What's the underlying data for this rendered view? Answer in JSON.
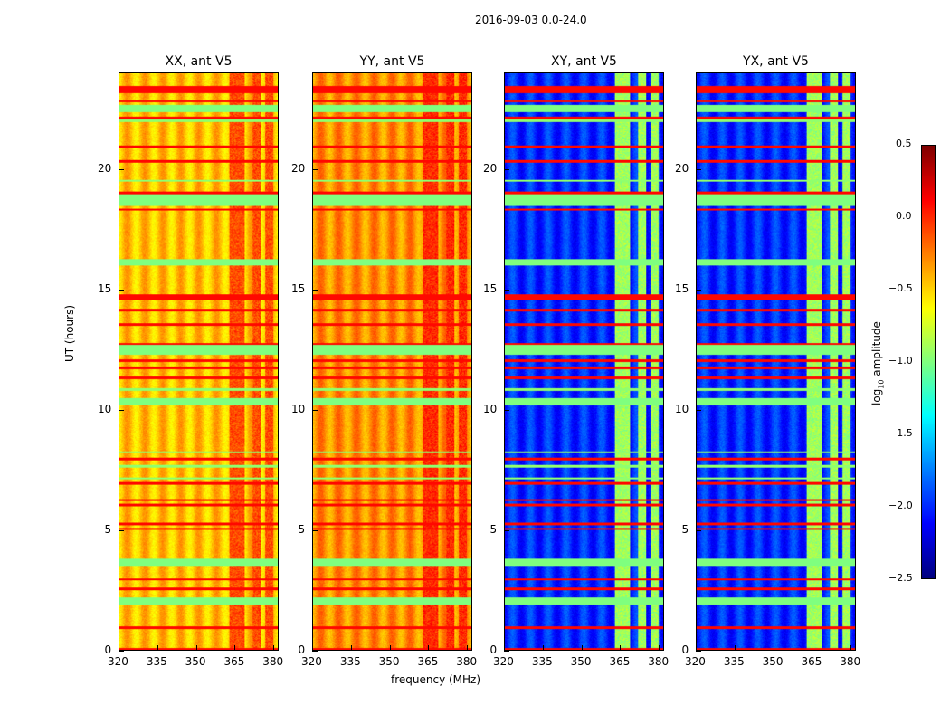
{
  "chart_data": {
    "type": "heatmap",
    "suptitle": "2016-09-03 0.0-24.0",
    "xlabel": "frequency (MHz)",
    "ylabel": "UT (hours)",
    "xlim": [
      320,
      382
    ],
    "ylim": [
      0,
      24
    ],
    "xticks": [
      "320",
      "335",
      "350",
      "365",
      "380"
    ],
    "yticks": [
      "0",
      "5",
      "10",
      "15",
      "20"
    ],
    "colormap": "jet",
    "rfi_channels_mhz": [
      [
        363,
        366
      ],
      [
        366,
        369
      ],
      [
        372,
        375
      ],
      [
        377,
        380
      ]
    ],
    "flagged_bands_hours": [
      [
        3.5,
        3.7
      ],
      [
        10.2,
        10.4
      ],
      [
        12.3,
        12.6
      ],
      [
        18.5,
        18.9
      ],
      [
        22.4,
        22.6
      ],
      [
        1.9,
        2.1
      ],
      [
        16.0,
        16.2
      ]
    ],
    "panels": [
      {
        "title": "XX, ant V5",
        "base_log_amp": -0.45,
        "rfi_log_amp": -0.1
      },
      {
        "title": "YY, ant V5",
        "base_log_amp": -0.3,
        "rfi_log_amp": 0.0
      },
      {
        "title": "XY, ant V5",
        "base_log_amp": -2.0,
        "rfi_log_amp": -0.9
      },
      {
        "title": "YX, ant V5",
        "base_log_amp": -2.0,
        "rfi_log_amp": -0.9
      }
    ],
    "colorbar": {
      "label": "log10 amplitude",
      "label_main": "log",
      "label_sub": "10",
      "label_rest": " amplitude",
      "range": [
        -2.5,
        0.5
      ],
      "ticks": [
        "0.5",
        "0.0",
        "−0.5",
        "−1.0",
        "−1.5",
        "−2.0",
        "−2.5"
      ]
    }
  }
}
